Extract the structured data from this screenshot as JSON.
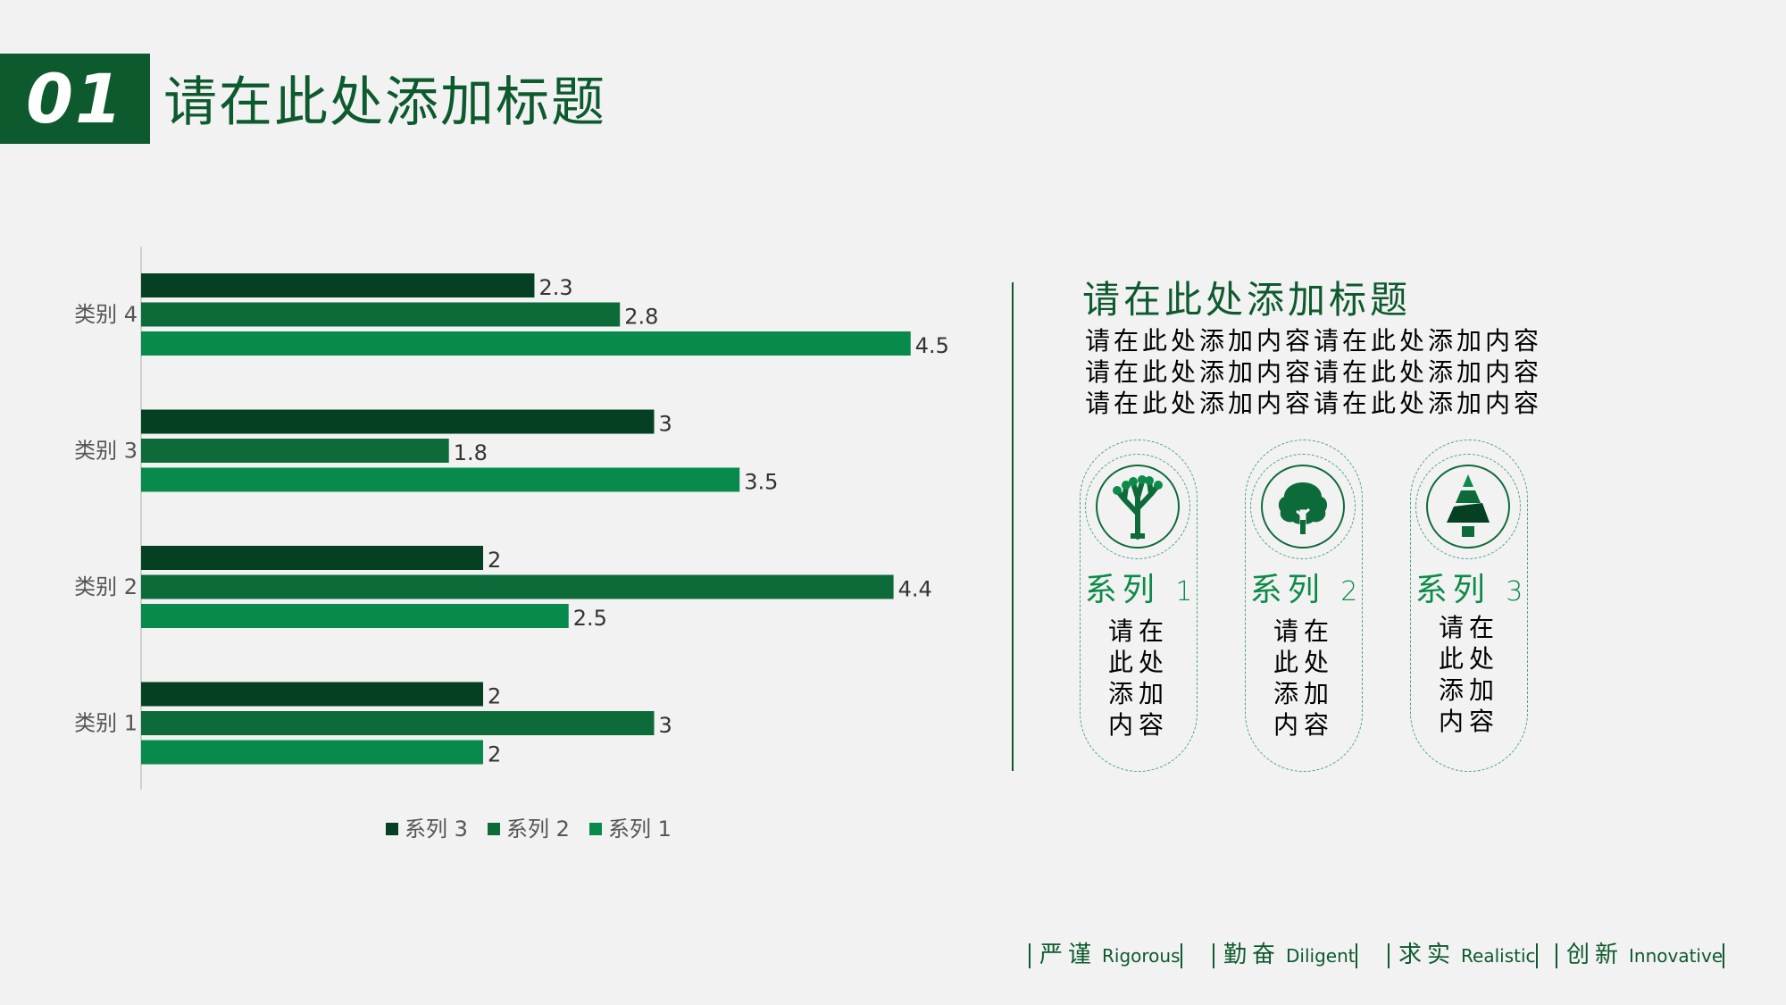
{
  "header": {
    "number": "01",
    "title": "请在此处添加标题"
  },
  "chart_data": {
    "type": "bar",
    "orientation": "horizontal",
    "categories": [
      "类别 1",
      "类别 2",
      "类别 3",
      "类别 4"
    ],
    "series": [
      {
        "name": "系列 3",
        "color": "#054023",
        "values": [
          2,
          2,
          3,
          2.3
        ]
      },
      {
        "name": "系列 2",
        "color": "#0d6b3a",
        "values": [
          3,
          4.4,
          1.8,
          2.8
        ]
      },
      {
        "name": "系列 1",
        "color": "#078a4c",
        "values": [
          2,
          2.5,
          3.5,
          4.5
        ]
      }
    ],
    "legend_order": [
      "系列 3",
      "系列 2",
      "系列 1"
    ],
    "legend_position": "bottom",
    "data_labels": true,
    "xlim": [
      0,
      5.2
    ],
    "grid": false
  },
  "right_panel": {
    "title": "请在此处添加标题",
    "body_lines": [
      "请在此处添加内容请在此处添加内容",
      "请在此处添加内容请在此处添加内容",
      "请在此处添加内容请在此处添加内容"
    ],
    "cards": [
      {
        "label": "系列",
        "num": "1",
        "icon": "branch-tree-icon",
        "lines": [
          "请在",
          "此处",
          "添加",
          "内容"
        ]
      },
      {
        "label": "系列",
        "num": "2",
        "icon": "round-tree-icon",
        "lines": [
          "请在",
          "此处",
          "添加",
          "内容"
        ]
      },
      {
        "label": "系列",
        "num": "3",
        "icon": "pine-tree-icon",
        "lines": [
          "请在",
          "此处",
          "添加",
          "内容"
        ]
      }
    ]
  },
  "footer": [
    {
      "cn": "严谨",
      "en": "Rigorous"
    },
    {
      "cn": "勤奋",
      "en": "Diligent"
    },
    {
      "cn": "求实",
      "en": "Realistic"
    },
    {
      "cn": "创新",
      "en": "Innovative"
    }
  ],
  "colors": {
    "accent": "#0d5a2e",
    "light_accent": "#0d8a4a"
  }
}
